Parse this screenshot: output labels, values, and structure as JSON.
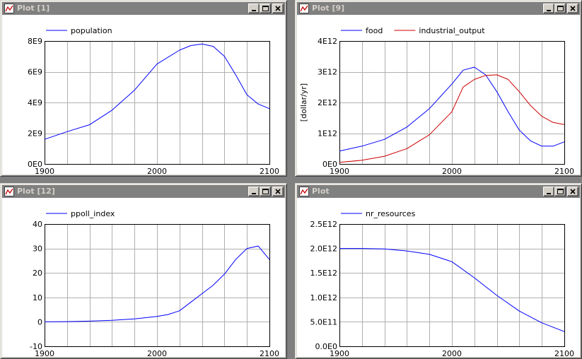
{
  "windows": [
    {
      "title": "Plot [1]",
      "chart_data": {
        "type": "line",
        "x": [
          1900,
          1920,
          1940,
          1960,
          1980,
          2000,
          2020,
          2030,
          2040,
          2050,
          2060,
          2070,
          2080,
          2090,
          2100
        ],
        "series": [
          {
            "name": "population",
            "color": "#0000ff",
            "values": [
              1600000000.0,
              2100000000.0,
              2550000000.0,
              3500000000.0,
              4800000000.0,
              6500000000.0,
              7400000000.0,
              7700000000.0,
              7800000000.0,
              7650000000.0,
              7000000000.0,
              5800000000.0,
              4500000000.0,
              3900000000.0,
              3600000000.0
            ]
          }
        ],
        "xlim": [
          1900,
          2100
        ],
        "ylim": [
          0,
          8000000000.0
        ],
        "xticks": [
          "1900",
          "2000",
          "2100"
        ],
        "yticks": [
          "0E0",
          "2E9",
          "4E9",
          "6E9",
          "8E9"
        ],
        "ylabel": "",
        "legend": "top-left",
        "grid": true
      }
    },
    {
      "title": "Plot [9]",
      "chart_data": {
        "type": "line",
        "x": [
          1900,
          1920,
          1940,
          1960,
          1980,
          2000,
          2010,
          2020,
          2030,
          2040,
          2050,
          2060,
          2070,
          2080,
          2090,
          2100
        ],
        "series": [
          {
            "name": "food",
            "color": "#0000ff",
            "values": [
              420000000000.0,
              580000000000.0,
              800000000000.0,
              1200000000000.0,
              1800000000000.0,
              2600000000000.0,
              3050000000000.0,
              3150000000000.0,
              2900000000000.0,
              2350000000000.0,
              1700000000000.0,
              1100000000000.0,
              750000000000.0,
              580000000000.0,
              580000000000.0,
              720000000000.0
            ]
          },
          {
            "name": "industrial_output",
            "color": "#cc0000",
            "values": [
              50000000000.0,
              120000000000.0,
              250000000000.0,
              500000000000.0,
              950000000000.0,
              1700000000000.0,
              2500000000000.0,
              2750000000000.0,
              2880000000000.0,
              2900000000000.0,
              2750000000000.0,
              2350000000000.0,
              1900000000000.0,
              1550000000000.0,
              1350000000000.0,
              1280000000000.0
            ]
          }
        ],
        "xlim": [
          1900,
          2100
        ],
        "ylim": [
          0,
          4000000000000.0
        ],
        "xticks": [
          "1900",
          "2000",
          "2100"
        ],
        "yticks": [
          "0E0",
          "1E12",
          "2E12",
          "3E12",
          "4E12"
        ],
        "ylabel": "[dollar/yr]",
        "legend": "top-left",
        "grid": true
      }
    },
    {
      "title": "Plot [12]",
      "chart_data": {
        "type": "line",
        "x": [
          1900,
          1920,
          1940,
          1960,
          1980,
          2000,
          2010,
          2020,
          2030,
          2040,
          2050,
          2060,
          2070,
          2080,
          2090,
          2100
        ],
        "series": [
          {
            "name": "ppoll_index",
            "color": "#0000ff",
            "values": [
              0,
              0.1,
              0.3,
              0.6,
              1.2,
              2.2,
              3.0,
              4.5,
              8.0,
              11.5,
              15.0,
              19.5,
              25.5,
              30.0,
              31.0,
              25.5
            ]
          }
        ],
        "xlim": [
          1900,
          2100
        ],
        "ylim": [
          -10,
          40
        ],
        "xticks": [
          "1900",
          "2000",
          "2100"
        ],
        "yticks": [
          "-10",
          "0",
          "10",
          "20",
          "30",
          "40"
        ],
        "ylabel": "",
        "legend": "top-left",
        "grid": true
      }
    },
    {
      "title": "Plot",
      "chart_data": {
        "type": "line",
        "x": [
          1900,
          1920,
          1940,
          1960,
          1980,
          2000,
          2020,
          2040,
          2060,
          2080,
          2100
        ],
        "series": [
          {
            "name": "nr_resources",
            "color": "#0000ff",
            "values": [
              2000000000000.0,
              2000000000000.0,
              1990000000000.0,
              1950000000000.0,
              1880000000000.0,
              1730000000000.0,
              1400000000000.0,
              1040000000000.0,
              720000000000.0,
              480000000000.0,
              300000000000.0
            ]
          }
        ],
        "xlim": [
          1900,
          2100
        ],
        "ylim": [
          0,
          2500000000000.0
        ],
        "xticks": [
          "1900",
          "2000",
          "2100"
        ],
        "yticks": [
          "0.0E0",
          "5.0E11",
          "1.0E12",
          "1.5E12",
          "2.0E12",
          "2.5E12"
        ],
        "ylabel": "",
        "legend": "top-left",
        "grid": true
      }
    }
  ]
}
